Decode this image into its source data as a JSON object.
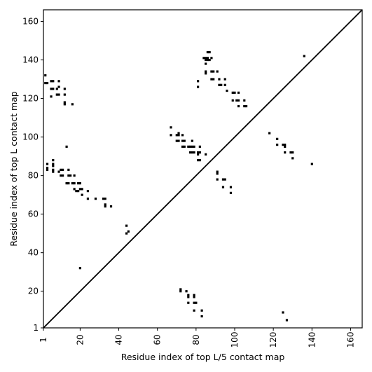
{
  "chart_data": {
    "type": "scatter",
    "title": "",
    "xlabel": "Residue index of top L/5 contact map",
    "ylabel": "Residue index of top L contact map",
    "xlim": [
      1,
      166
    ],
    "ylim": [
      1,
      166
    ],
    "xticks": [
      1,
      20,
      40,
      60,
      80,
      100,
      120,
      140,
      160
    ],
    "yticks": [
      1,
      20,
      40,
      60,
      80,
      100,
      120,
      140,
      160
    ],
    "xtick_rotation": -90,
    "grid": false,
    "legend": "none",
    "marker": "square",
    "colors": {
      "points": "#000000",
      "diagonal": "#000000",
      "frame": "#000000"
    },
    "diagonal": {
      "from": [
        1,
        1
      ],
      "to": [
        166,
        166
      ]
    },
    "series": [
      {
        "values": [
          [
            2,
            132
          ],
          [
            2,
            128
          ],
          [
            3,
            128
          ],
          [
            3,
            86
          ],
          [
            3,
            84
          ],
          [
            3,
            83
          ],
          [
            5,
            129
          ],
          [
            6,
            129
          ],
          [
            5,
            125
          ],
          [
            6,
            125
          ],
          [
            5,
            121
          ],
          [
            6,
            88
          ],
          [
            6,
            86
          ],
          [
            6,
            85
          ],
          [
            6,
            82
          ],
          [
            6,
            83
          ],
          [
            8,
            125
          ],
          [
            9,
            126
          ],
          [
            8,
            122
          ],
          [
            9,
            122
          ],
          [
            9,
            129
          ],
          [
            9,
            82
          ],
          [
            10,
            83
          ],
          [
            11,
            83
          ],
          [
            10,
            80
          ],
          [
            11,
            80
          ],
          [
            12,
            125
          ],
          [
            12,
            122
          ],
          [
            12,
            118
          ],
          [
            12,
            117
          ],
          [
            13,
            95
          ],
          [
            13,
            76
          ],
          [
            14,
            76
          ],
          [
            14,
            80
          ],
          [
            15,
            80
          ],
          [
            14,
            83
          ],
          [
            16,
            117
          ],
          [
            16,
            76
          ],
          [
            17,
            76
          ],
          [
            17,
            80
          ],
          [
            17,
            73
          ],
          [
            18,
            72
          ],
          [
            19,
            72
          ],
          [
            19,
            76
          ],
          [
            20,
            76
          ],
          [
            20,
            73
          ],
          [
            21,
            73
          ],
          [
            21,
            70
          ],
          [
            20,
            32
          ],
          [
            24,
            72
          ],
          [
            24,
            68
          ],
          [
            28,
            68
          ],
          [
            32,
            68
          ],
          [
            33,
            68
          ],
          [
            33,
            65
          ],
          [
            33,
            64
          ],
          [
            36,
            64
          ],
          [
            44,
            54
          ],
          [
            45,
            51
          ],
          [
            44,
            50
          ],
          [
            67,
            105
          ],
          [
            67,
            101
          ],
          [
            70,
            101
          ],
          [
            71,
            101
          ],
          [
            71,
            102
          ],
          [
            70,
            98
          ],
          [
            71,
            98
          ],
          [
            73,
            98
          ],
          [
            74,
            98
          ],
          [
            73,
            95
          ],
          [
            74,
            95
          ],
          [
            73,
            101
          ],
          [
            76,
            95
          ],
          [
            77,
            95
          ],
          [
            78,
            95
          ],
          [
            79,
            95
          ],
          [
            77,
            92
          ],
          [
            78,
            92
          ],
          [
            79,
            92
          ],
          [
            78,
            98
          ],
          [
            81,
            92
          ],
          [
            82,
            92
          ],
          [
            81,
            91
          ],
          [
            81,
            88
          ],
          [
            82,
            88
          ],
          [
            82,
            95
          ],
          [
            85,
            91
          ],
          [
            81,
            129
          ],
          [
            81,
            126
          ],
          [
            84,
            141
          ],
          [
            85,
            141
          ],
          [
            86,
            141
          ],
          [
            85,
            140
          ],
          [
            86,
            140
          ],
          [
            87,
            140
          ],
          [
            85,
            138
          ],
          [
            85,
            134
          ],
          [
            85,
            133
          ],
          [
            86,
            144
          ],
          [
            87,
            144
          ],
          [
            88,
            141
          ],
          [
            88,
            134
          ],
          [
            89,
            134
          ],
          [
            88,
            130
          ],
          [
            89,
            130
          ],
          [
            91,
            134
          ],
          [
            92,
            130
          ],
          [
            92,
            127
          ],
          [
            93,
            127
          ],
          [
            95,
            130
          ],
          [
            95,
            127
          ],
          [
            96,
            124
          ],
          [
            99,
            123
          ],
          [
            100,
            123
          ],
          [
            99,
            119
          ],
          [
            102,
            123
          ],
          [
            101,
            119
          ],
          [
            102,
            119
          ],
          [
            102,
            116
          ],
          [
            105,
            119
          ],
          [
            105,
            116
          ],
          [
            106,
            116
          ],
          [
            91,
            82
          ],
          [
            91,
            81
          ],
          [
            91,
            78
          ],
          [
            94,
            78
          ],
          [
            95,
            78
          ],
          [
            94,
            74
          ],
          [
            98,
            74
          ],
          [
            98,
            71
          ],
          [
            118,
            102
          ],
          [
            122,
            99
          ],
          [
            122,
            96
          ],
          [
            125,
            96
          ],
          [
            126,
            96
          ],
          [
            126,
            95
          ],
          [
            126,
            92
          ],
          [
            129,
            92
          ],
          [
            130,
            92
          ],
          [
            130,
            89
          ],
          [
            136,
            142
          ],
          [
            140,
            86
          ],
          [
            72,
            21
          ],
          [
            72,
            20
          ],
          [
            75,
            20
          ],
          [
            76,
            18
          ],
          [
            76,
            17
          ],
          [
            79,
            18
          ],
          [
            79,
            17
          ],
          [
            79,
            14
          ],
          [
            80,
            14
          ],
          [
            76,
            14
          ],
          [
            79,
            10
          ],
          [
            83,
            10
          ],
          [
            83,
            7
          ],
          [
            125,
            9
          ],
          [
            127,
            5
          ]
        ]
      }
    ]
  }
}
